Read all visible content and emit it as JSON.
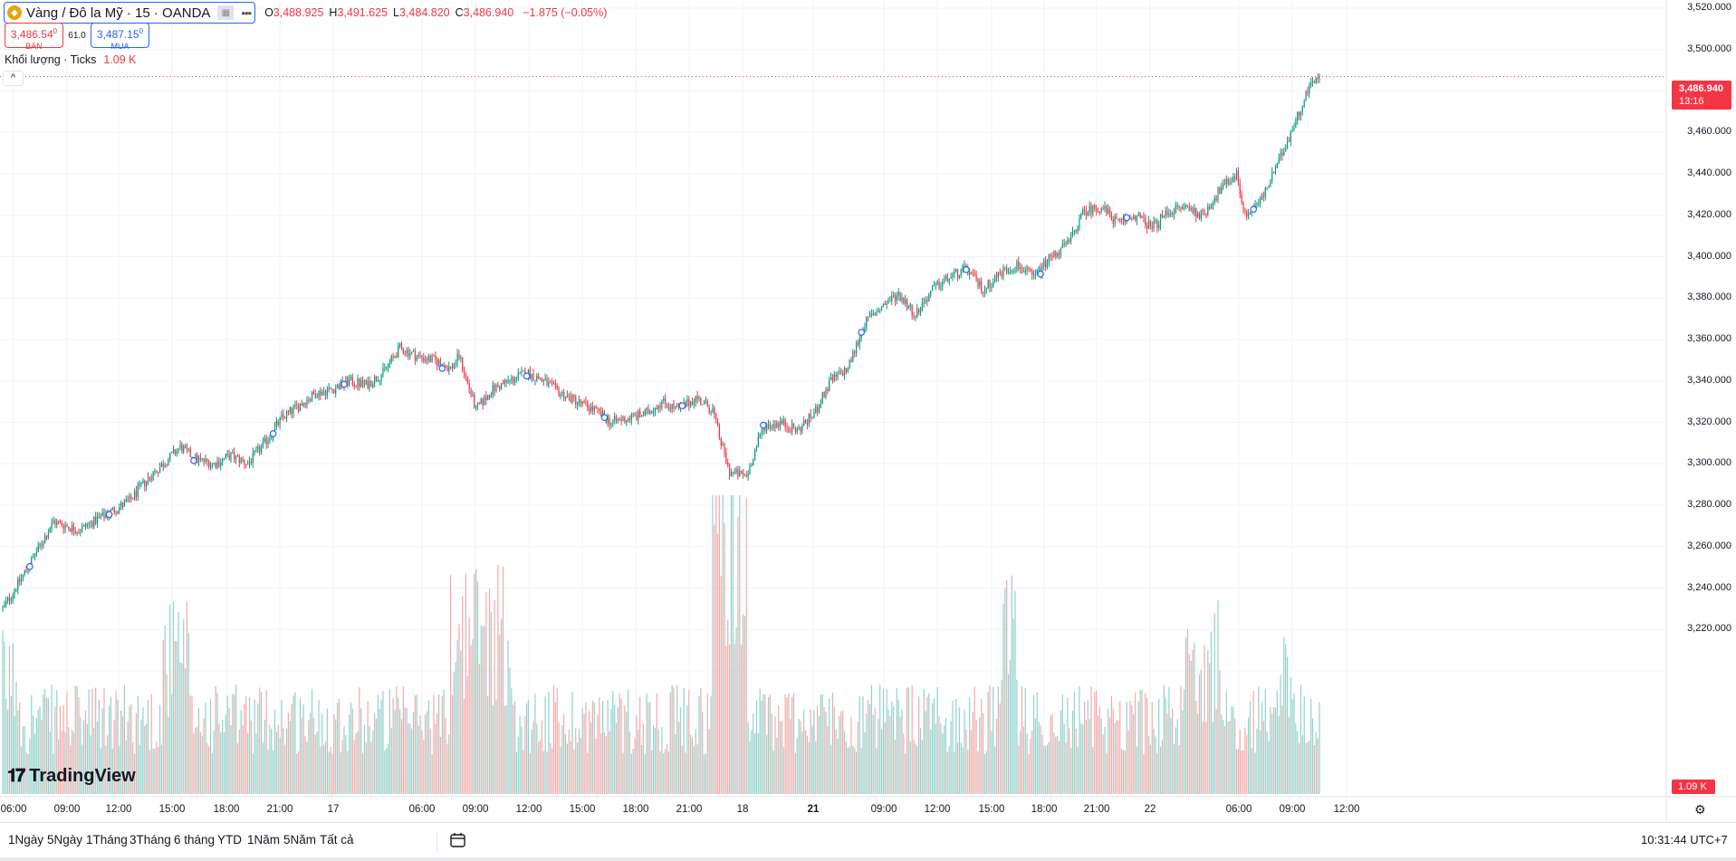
{
  "symbol": {
    "name": "Vàng / Đô la Mỹ · 15 · OANDA",
    "logo_icon": "gold-coin-icon"
  },
  "ohlc": {
    "o_label": "O",
    "o": "3,488.925",
    "h_label": "H",
    "h": "3,491.625",
    "l_label": "L",
    "l": "3,484.820",
    "c_label": "C",
    "c": "3,486.940",
    "change": "−1.875 (−0.05%)"
  },
  "bid": {
    "price": "3,486.54",
    "sup": "0",
    "label": "BÁN"
  },
  "ask": {
    "price": "3,487.15",
    "sup": "0",
    "label": "MUA"
  },
  "spread": "61.0",
  "volume_legend": {
    "label": "Khối lượng · Ticks",
    "value": "1.09 K"
  },
  "last_price": {
    "value": "3,486.940",
    "countdown": "13:16"
  },
  "last_volume": "1.09 K",
  "brand": "TradingView",
  "colors": {
    "up": "#089981",
    "down": "#f23645",
    "up_vol": "#92d2cc",
    "down_vol": "#f7a9a7",
    "accent": "#2962ff"
  },
  "price_axis": [
    "3,520.000",
    "3,500.000",
    "3,480.000",
    "3,460.000",
    "3,440.000",
    "3,420.000",
    "3,400.000",
    "3,380.000",
    "3,360.000",
    "3,340.000",
    "3,320.000",
    "3,300.000",
    "3,280.000",
    "3,260.000",
    "3,240.000",
    "3,220.000"
  ],
  "time_axis": [
    "06:00",
    "09:00",
    "12:00",
    "15:00",
    "18:00",
    "21:00",
    "17",
    "06:00",
    "09:00",
    "12:00",
    "15:00",
    "18:00",
    "21:00",
    "18",
    "21",
    "09:00",
    "12:00",
    "15:00",
    "18:00",
    "21:00",
    "22",
    "06:00",
    "09:00",
    "12:00"
  ],
  "time_axis_bold": [
    "21"
  ],
  "range_buttons": [
    "1Ngày",
    "5Ngày",
    "1Tháng",
    "3Tháng",
    "6 tháng",
    "YTD",
    "1Năm",
    "5Năm",
    "Tất cả"
  ],
  "clock": "10:31:44 UTC+7",
  "chart_data": {
    "type": "candlestick",
    "symbol": "Vàng / Đô la Mỹ · 15 · OANDA",
    "ylim": [
      3210,
      3522
    ],
    "key_path": [
      [
        0,
        3230
      ],
      [
        15,
        3250
      ],
      [
        30,
        3272
      ],
      [
        45,
        3268
      ],
      [
        60,
        3275
      ],
      [
        75,
        3282
      ],
      [
        85,
        3292
      ],
      [
        95,
        3300
      ],
      [
        105,
        3308
      ],
      [
        115,
        3302
      ],
      [
        125,
        3300
      ],
      [
        135,
        3304
      ],
      [
        145,
        3300
      ],
      [
        155,
        3310
      ],
      [
        165,
        3322
      ],
      [
        175,
        3328
      ],
      [
        185,
        3334
      ],
      [
        195,
        3336
      ],
      [
        205,
        3340
      ],
      [
        215,
        3338
      ],
      [
        225,
        3344
      ],
      [
        235,
        3356
      ],
      [
        245,
        3352
      ],
      [
        255,
        3350
      ],
      [
        265,
        3346
      ],
      [
        270,
        3352
      ],
      [
        280,
        3326
      ],
      [
        290,
        3336
      ],
      [
        300,
        3340
      ],
      [
        310,
        3344
      ],
      [
        320,
        3340
      ],
      [
        330,
        3334
      ],
      [
        340,
        3330
      ],
      [
        350,
        3326
      ],
      [
        360,
        3320
      ],
      [
        370,
        3322
      ],
      [
        380,
        3324
      ],
      [
        390,
        3330
      ],
      [
        400,
        3326
      ],
      [
        410,
        3332
      ],
      [
        420,
        3326
      ],
      [
        425,
        3310
      ],
      [
        430,
        3296
      ],
      [
        440,
        3294
      ],
      [
        450,
        3318
      ],
      [
        460,
        3320
      ],
      [
        470,
        3316
      ],
      [
        480,
        3324
      ],
      [
        490,
        3340
      ],
      [
        500,
        3346
      ],
      [
        510,
        3368
      ],
      [
        520,
        3376
      ],
      [
        530,
        3382
      ],
      [
        540,
        3372
      ],
      [
        550,
        3384
      ],
      [
        560,
        3390
      ],
      [
        570,
        3394
      ],
      [
        580,
        3384
      ],
      [
        590,
        3392
      ],
      [
        600,
        3396
      ],
      [
        610,
        3390
      ],
      [
        620,
        3400
      ],
      [
        630,
        3406
      ],
      [
        640,
        3422
      ],
      [
        650,
        3424
      ],
      [
        660,
        3416
      ],
      [
        670,
        3420
      ],
      [
        680,
        3414
      ],
      [
        690,
        3422
      ],
      [
        700,
        3424
      ],
      [
        710,
        3420
      ],
      [
        720,
        3432
      ],
      [
        730,
        3440
      ],
      [
        735,
        3420
      ],
      [
        745,
        3428
      ],
      [
        755,
        3446
      ],
      [
        765,
        3466
      ],
      [
        775,
        3486
      ]
    ],
    "last_close": 3486.94,
    "volume_ylim": [
      0,
      1400
    ]
  }
}
